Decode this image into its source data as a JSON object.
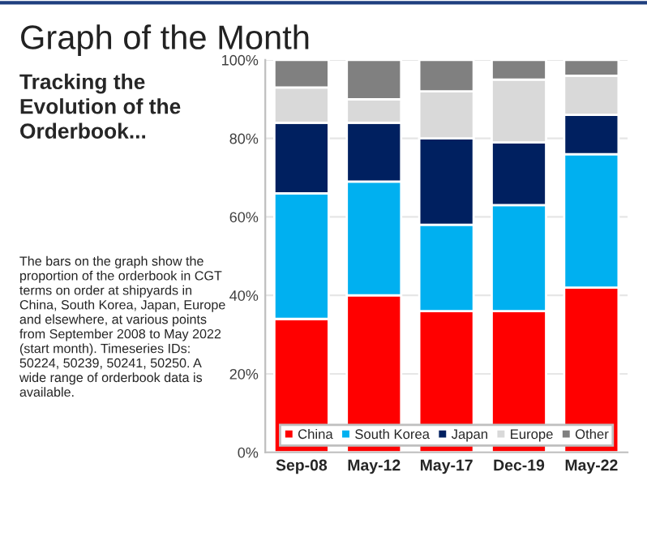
{
  "chart_data": {
    "type": "bar",
    "title": "Graph of the Month",
    "subtitle": "Tracking the Evolution of the Orderbook...",
    "annotations": [
      "The bars on the graph show the proportion of the orderbook in CGT terms on order at shipyards in China, South Korea, Japan, Europe and elsewhere, at various points from September 2008 to May 2022 (start month). Timeseries IDs: 50224, 50239, 50241, 50250. A wide range of orderbook data is available."
    ],
    "categories": [
      "Sep-08",
      "May-12",
      "May-17",
      "Dec-19",
      "May-22"
    ],
    "stacked": true,
    "series": [
      {
        "name": "China",
        "color": "#ff0000",
        "values": [
          34,
          40,
          36,
          36,
          42
        ]
      },
      {
        "name": "South Korea",
        "color": "#00b0f0",
        "values": [
          32,
          29,
          22,
          27,
          34
        ]
      },
      {
        "name": "Japan",
        "color": "#002060",
        "values": [
          18,
          15,
          22,
          16,
          10
        ]
      },
      {
        "name": "Europe",
        "color": "#d9d9d9",
        "values": [
          9,
          6,
          12,
          16,
          10
        ]
      },
      {
        "name": "Other",
        "color": "#808080",
        "values": [
          7,
          10,
          8,
          5,
          4
        ]
      }
    ],
    "ylim": [
      0,
      100
    ],
    "yticks": [
      {
        "value": 0,
        "label": "0%"
      },
      {
        "value": 20,
        "label": "20%"
      },
      {
        "value": 40,
        "label": "40%"
      },
      {
        "value": 60,
        "label": "60%"
      },
      {
        "value": 80,
        "label": "80%"
      },
      {
        "value": 100,
        "label": "100%"
      }
    ],
    "grid": "y",
    "legend": "bottom"
  }
}
